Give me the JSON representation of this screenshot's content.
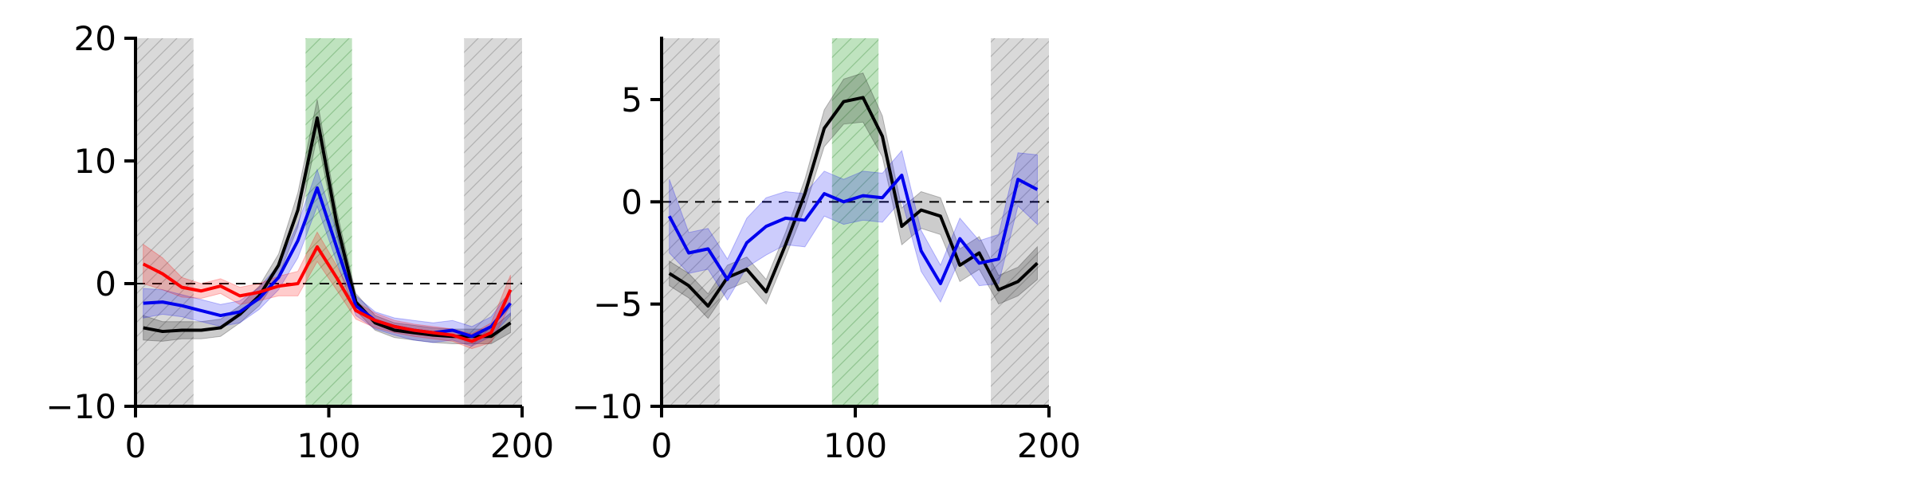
{
  "colors": {
    "black": "#000000",
    "blue": "#0000ee",
    "red": "#ff0000",
    "gray_region": "#d9d9d9",
    "green_region": "#bfe3bf"
  },
  "chart_data": [
    {
      "type": "line",
      "xlim": [
        0,
        200
      ],
      "ylim": [
        -10,
        20
      ],
      "xticks": [
        0,
        100,
        200
      ],
      "yticks": [
        -10,
        0,
        10,
        20
      ],
      "xtick_labels": [
        "0",
        "100",
        "200"
      ],
      "ytick_labels": [
        "−10",
        "0",
        "10",
        "20"
      ],
      "reference_line": 0,
      "shaded_regions": [
        {
          "x0": 0,
          "x1": 30,
          "color": "gray",
          "hatch": true
        },
        {
          "x0": 88,
          "x1": 112,
          "color": "green",
          "hatch": true
        },
        {
          "x0": 170,
          "x1": 200,
          "color": "gray",
          "hatch": true
        }
      ],
      "x": [
        4,
        14,
        24,
        34,
        44,
        54,
        64,
        74,
        84,
        94,
        104,
        114,
        124,
        134,
        144,
        154,
        164,
        174,
        184,
        194
      ],
      "series": [
        {
          "color": "black",
          "values": [
            -3.6,
            -3.9,
            -3.8,
            -3.8,
            -3.6,
            -2.5,
            -1.0,
            1.5,
            6.0,
            13.5,
            5.0,
            -1.5,
            -3.2,
            -3.8,
            -4.0,
            -4.2,
            -4.3,
            -4.3,
            -4.3,
            -3.2
          ],
          "band": [
            1.0,
            0.8,
            0.7,
            0.7,
            0.7,
            0.7,
            0.8,
            0.9,
            1.4,
            1.5,
            1.0,
            0.7,
            0.6,
            0.6,
            0.6,
            0.6,
            0.6,
            0.6,
            0.6,
            0.8
          ]
        },
        {
          "color": "blue",
          "values": [
            -1.6,
            -1.5,
            -1.8,
            -2.2,
            -2.6,
            -2.3,
            -1.2,
            0.5,
            3.5,
            7.8,
            3.0,
            -1.8,
            -3.0,
            -3.5,
            -3.8,
            -4.0,
            -3.8,
            -4.3,
            -3.5,
            -1.6
          ],
          "band": [
            1.2,
            1.0,
            0.9,
            0.9,
            0.9,
            0.9,
            0.9,
            1.0,
            1.4,
            1.5,
            1.2,
            0.8,
            0.7,
            0.7,
            0.8,
            0.8,
            0.8,
            0.8,
            0.8,
            1.0
          ]
        },
        {
          "color": "red",
          "values": [
            1.6,
            0.8,
            -0.3,
            -0.6,
            -0.2,
            -1.0,
            -0.7,
            -0.2,
            0.0,
            3.0,
            0.5,
            -2.2,
            -3.0,
            -3.5,
            -3.8,
            -4.0,
            -4.2,
            -4.7,
            -4.0,
            -0.5
          ],
          "band": [
            1.6,
            1.3,
            0.8,
            0.6,
            0.6,
            0.7,
            0.7,
            0.8,
            1.0,
            1.2,
            1.0,
            0.7,
            0.6,
            0.5,
            0.5,
            0.5,
            0.5,
            0.6,
            0.8,
            1.2
          ]
        }
      ]
    },
    {
      "type": "line",
      "xlim": [
        0,
        200
      ],
      "ylim": [
        -10,
        8
      ],
      "xticks": [
        0,
        100,
        200
      ],
      "yticks": [
        -10,
        -5,
        0,
        5
      ],
      "xtick_labels": [
        "0",
        "100",
        "200"
      ],
      "ytick_labels": [
        "−10",
        "−5",
        "0",
        "5"
      ],
      "reference_line": 0,
      "shaded_regions": [
        {
          "x0": 0,
          "x1": 30,
          "color": "gray",
          "hatch": true
        },
        {
          "x0": 88,
          "x1": 112,
          "color": "green",
          "hatch": true
        },
        {
          "x0": 170,
          "x1": 200,
          "color": "gray",
          "hatch": true
        }
      ],
      "x": [
        4,
        14,
        24,
        34,
        44,
        54,
        64,
        74,
        84,
        94,
        104,
        114,
        124,
        134,
        144,
        154,
        164,
        174,
        184,
        194
      ],
      "series": [
        {
          "color": "black",
          "values": [
            -3.5,
            -4.1,
            -5.1,
            -3.7,
            -3.3,
            -4.4,
            -2.1,
            0.4,
            3.6,
            4.9,
            5.1,
            3.2,
            -1.2,
            -0.4,
            -0.7,
            -3.1,
            -2.5,
            -4.3,
            -3.9,
            -3.0
          ],
          "band": [
            0.6,
            0.6,
            0.6,
            0.6,
            0.6,
            0.6,
            0.6,
            0.7,
            0.9,
            1.1,
            1.2,
            1.0,
            0.9,
            0.9,
            0.9,
            0.8,
            0.8,
            0.7,
            0.7,
            0.8
          ]
        },
        {
          "color": "blue",
          "values": [
            -0.7,
            -2.5,
            -2.3,
            -3.8,
            -2.0,
            -1.2,
            -0.8,
            -0.9,
            0.4,
            0.0,
            0.3,
            0.2,
            1.3,
            -2.4,
            -4.0,
            -1.8,
            -3.0,
            -2.8,
            1.1,
            0.6
          ],
          "band": [
            1.8,
            1.0,
            1.0,
            1.0,
            1.2,
            1.4,
            1.3,
            1.3,
            1.1,
            1.1,
            1.2,
            1.2,
            1.2,
            1.0,
            0.9,
            1.0,
            1.1,
            1.2,
            1.3,
            1.7
          ]
        }
      ]
    }
  ]
}
